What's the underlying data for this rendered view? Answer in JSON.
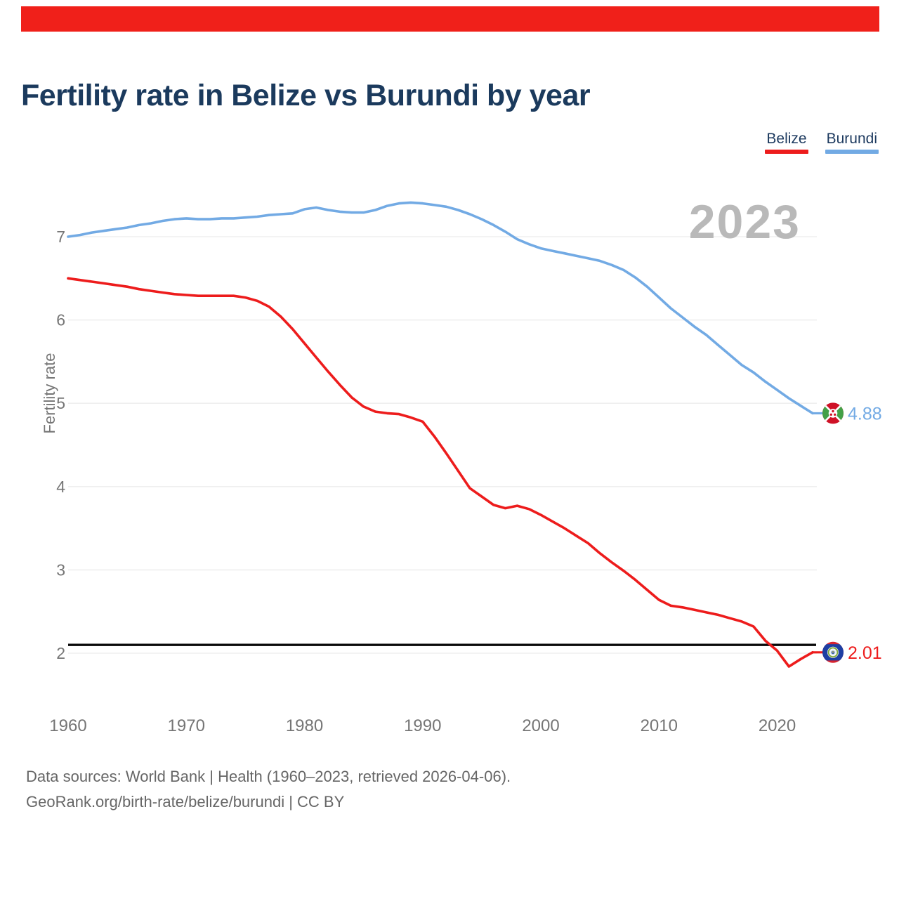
{
  "header": {
    "title": "Fertility rate in Belize vs Burundi by year"
  },
  "legend": {
    "items": [
      {
        "label": "Belize",
        "color": "#ed1c1c"
      },
      {
        "label": "Burundi",
        "color": "#72aae4"
      }
    ]
  },
  "watermark": "2023",
  "banner_color": "#f0201a",
  "footer": {
    "line1": "Data sources: World Bank | Health (1960–2023, retrieved 2026-04-06).",
    "line2": "GeoRank.org/birth-rate/belize/burundi | CC BY"
  },
  "chart_data": {
    "type": "line",
    "title": "Fertility rate in Belize vs Burundi by year",
    "xlabel": "",
    "ylabel": "Fertility rate",
    "x_range": [
      1960,
      2023
    ],
    "x_ticks": [
      1960,
      1970,
      1980,
      1990,
      2000,
      2010,
      2020
    ],
    "y_ticks": [
      7,
      6,
      5,
      4,
      3,
      2
    ],
    "ylim": [
      1.7,
      7.6
    ],
    "grid": "horizontal",
    "legend_position": "top-right",
    "goal_line": 2.1,
    "years": [
      1960,
      1961,
      1962,
      1963,
      1964,
      1965,
      1966,
      1967,
      1968,
      1969,
      1970,
      1971,
      1972,
      1973,
      1974,
      1975,
      1976,
      1977,
      1978,
      1979,
      1980,
      1981,
      1982,
      1983,
      1984,
      1985,
      1986,
      1987,
      1988,
      1989,
      1990,
      1991,
      1992,
      1993,
      1994,
      1995,
      1996,
      1997,
      1998,
      1999,
      2000,
      2001,
      2002,
      2003,
      2004,
      2005,
      2006,
      2007,
      2008,
      2009,
      2010,
      2011,
      2012,
      2013,
      2014,
      2015,
      2016,
      2017,
      2018,
      2019,
      2020,
      2021,
      2022,
      2023
    ],
    "series": [
      {
        "name": "Belize",
        "color": "#ed1c1c",
        "end_label": "2.01",
        "flag_icon": "belize-flag-icon",
        "values": [
          6.5,
          6.48,
          6.46,
          6.44,
          6.42,
          6.4,
          6.37,
          6.35,
          6.33,
          6.31,
          6.3,
          6.29,
          6.29,
          6.29,
          6.29,
          6.27,
          6.23,
          6.16,
          6.04,
          5.89,
          5.72,
          5.55,
          5.38,
          5.22,
          5.07,
          4.96,
          4.9,
          4.88,
          4.87,
          4.83,
          4.78,
          4.6,
          4.4,
          4.19,
          3.98,
          3.88,
          3.78,
          3.74,
          3.77,
          3.73,
          3.66,
          3.58,
          3.5,
          3.41,
          3.32,
          3.2,
          3.09,
          2.99,
          2.88,
          2.76,
          2.64,
          2.57,
          2.55,
          2.52,
          2.49,
          2.46,
          2.42,
          2.38,
          2.32,
          2.15,
          2.03,
          1.84,
          1.93,
          2.01
        ]
      },
      {
        "name": "Burundi",
        "color": "#72aae4",
        "end_label": "4.88",
        "flag_icon": "burundi-flag-icon",
        "values": [
          7.0,
          7.02,
          7.05,
          7.07,
          7.09,
          7.11,
          7.14,
          7.16,
          7.19,
          7.21,
          7.22,
          7.21,
          7.21,
          7.22,
          7.22,
          7.23,
          7.24,
          7.26,
          7.27,
          7.28,
          7.33,
          7.35,
          7.32,
          7.3,
          7.29,
          7.29,
          7.32,
          7.37,
          7.4,
          7.41,
          7.4,
          7.38,
          7.36,
          7.32,
          7.27,
          7.21,
          7.14,
          7.06,
          6.97,
          6.91,
          6.86,
          6.83,
          6.8,
          6.77,
          6.74,
          6.71,
          6.66,
          6.6,
          6.51,
          6.4,
          6.27,
          6.14,
          6.03,
          5.92,
          5.82,
          5.7,
          5.58,
          5.46,
          5.37,
          5.26,
          5.16,
          5.06,
          4.97,
          4.88
        ]
      }
    ]
  }
}
